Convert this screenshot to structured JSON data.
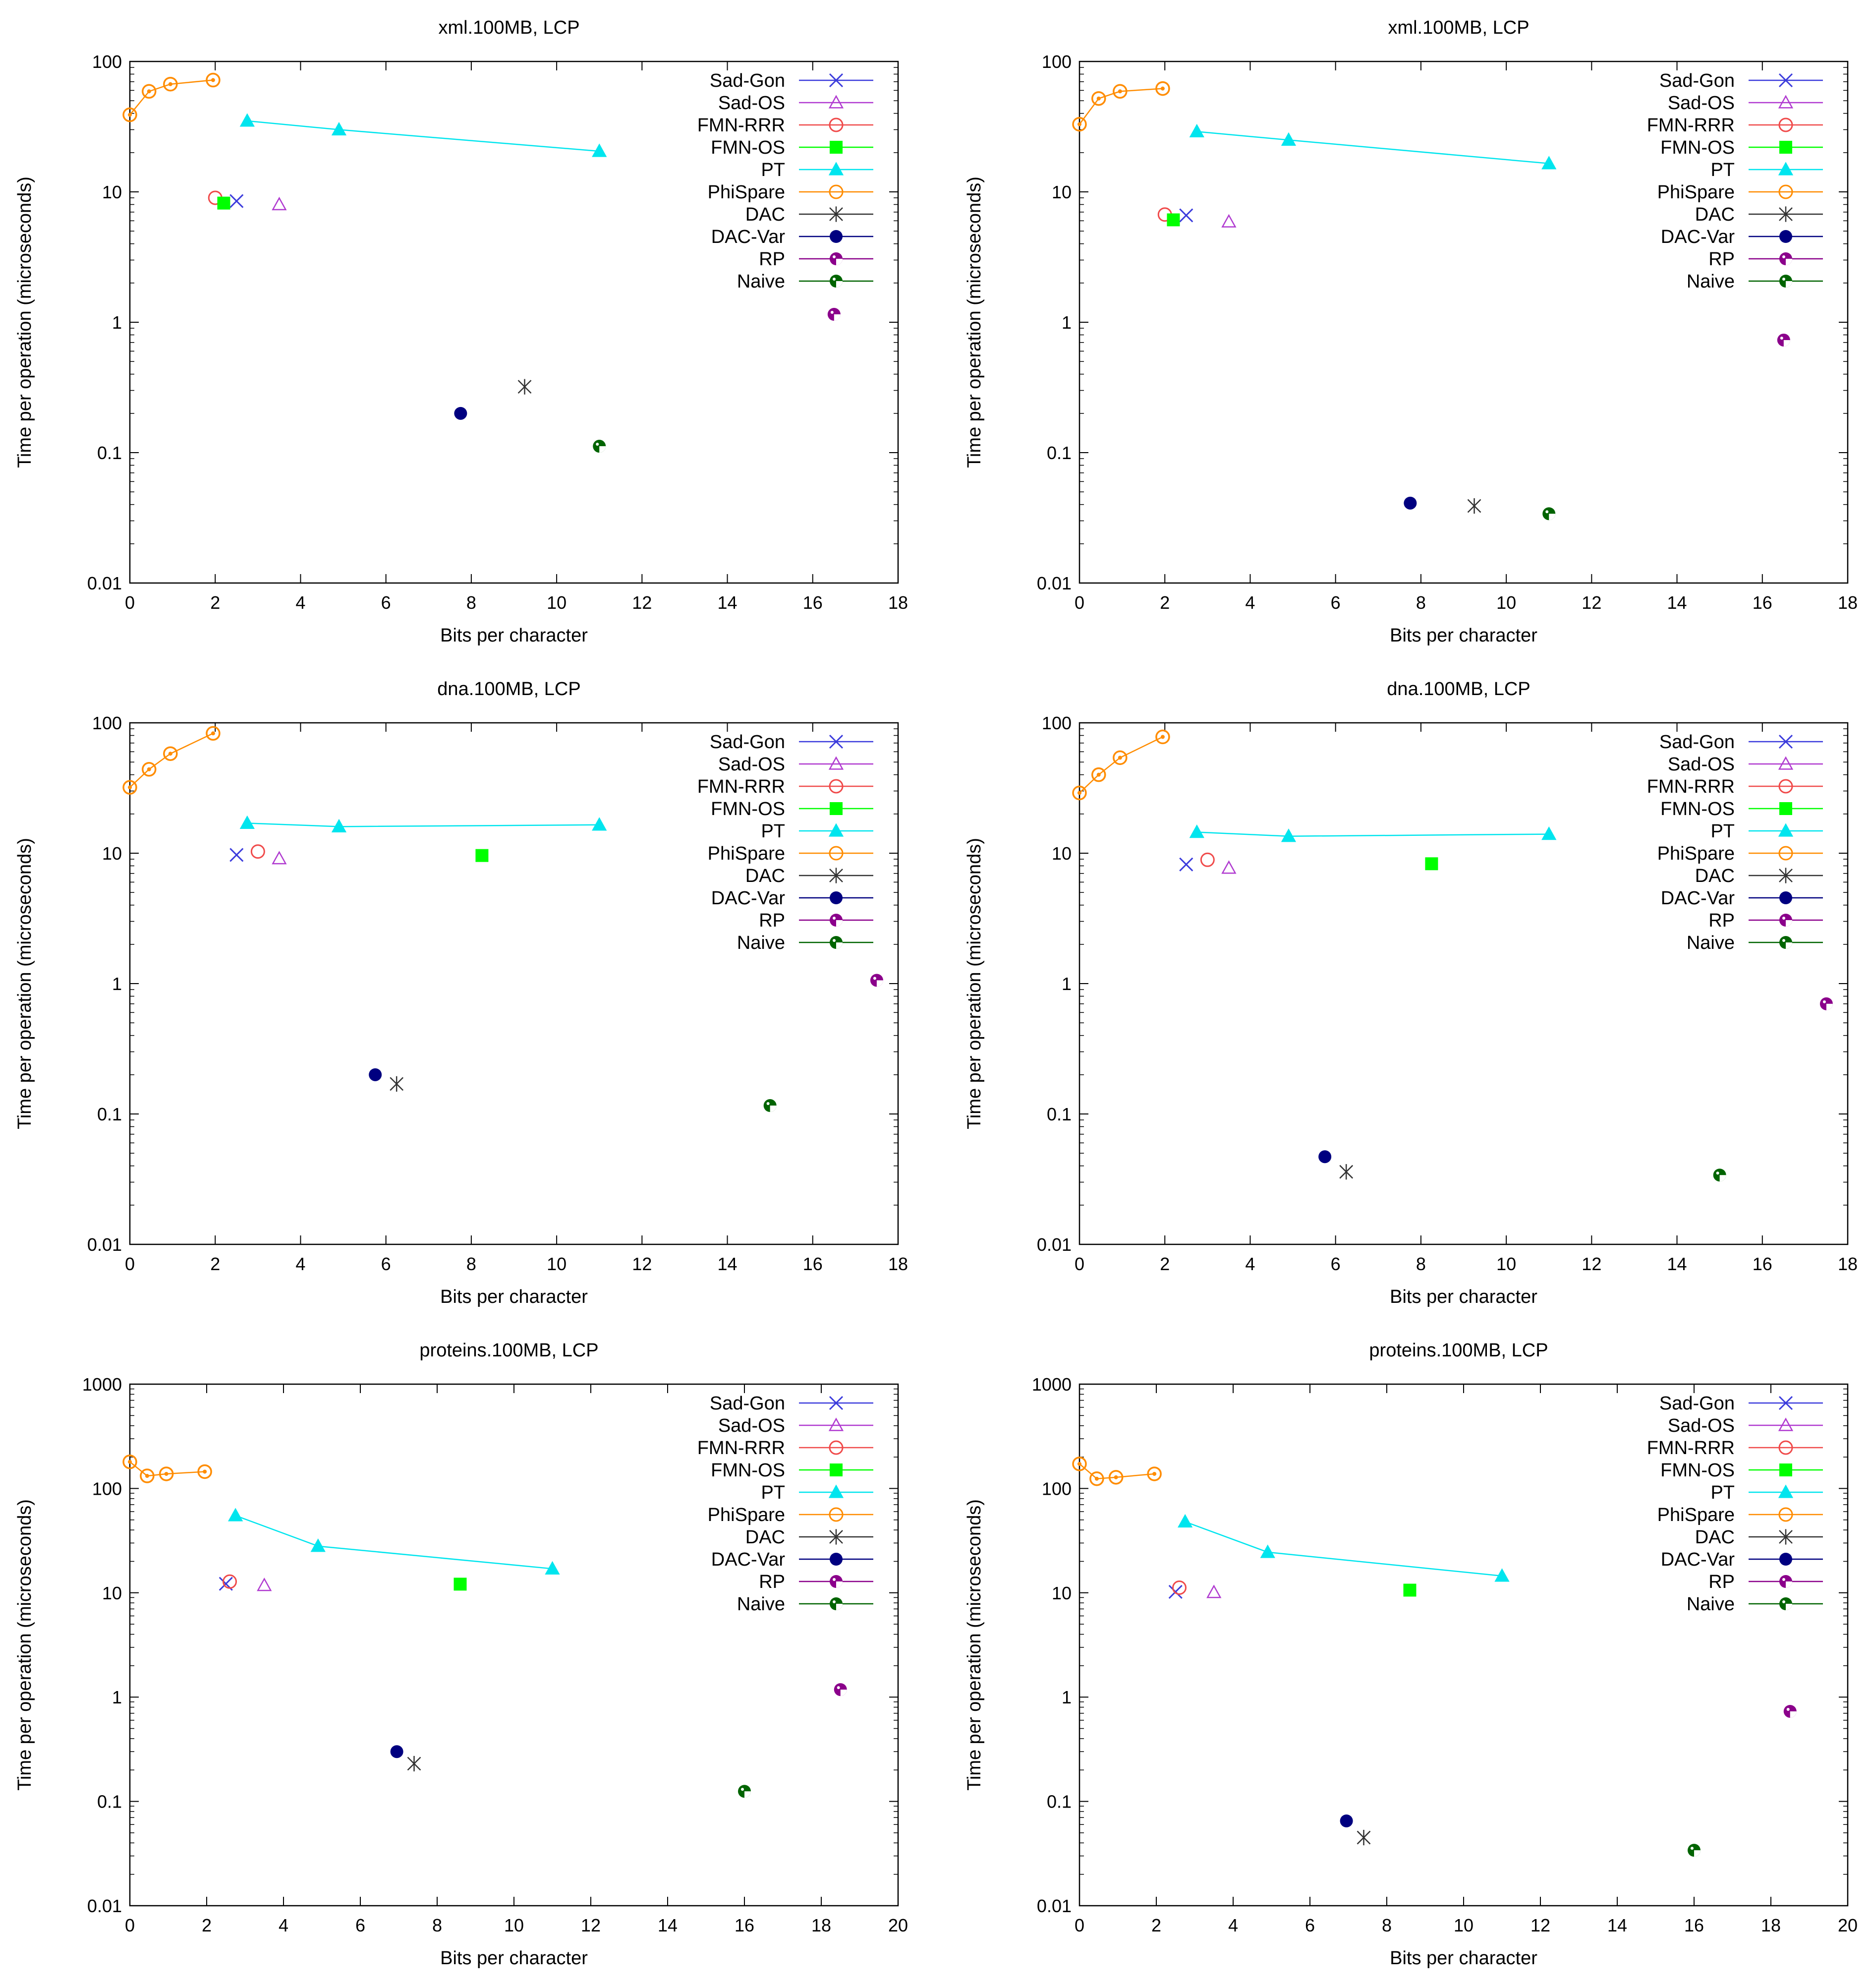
{
  "series_styles": [
    {
      "name": "Sad-Gon",
      "color": "#3b3bdc",
      "marker": "x",
      "legend_marker": "x"
    },
    {
      "name": "Sad-OS",
      "color": "#b03ad0",
      "marker": "triangle-open",
      "legend_marker": "triangle-open"
    },
    {
      "name": "FMN-RRR",
      "color": "#f04a4a",
      "marker": "circle-open",
      "legend_marker": "circle-open"
    },
    {
      "name": "FMN-OS",
      "color": "#00ff00",
      "marker": "square",
      "legend_marker": "square"
    },
    {
      "name": "PT",
      "color": "#00e5ee",
      "marker": "triangle",
      "legend_marker": "triangle"
    },
    {
      "name": "PhiSpare",
      "color": "#ff8c00",
      "marker": "circle-dot",
      "legend_marker": "circle-open"
    },
    {
      "name": "DAC",
      "color": "#333333",
      "marker": "star",
      "legend_marker": "star"
    },
    {
      "name": "DAC-Var",
      "color": "#000080",
      "marker": "circle",
      "legend_marker": "circle"
    },
    {
      "name": "RP",
      "color": "#8b008b",
      "marker": "circle-pattern",
      "legend_marker": "circle-pattern"
    },
    {
      "name": "Naive",
      "color": "#006400",
      "marker": "circle-pattern",
      "legend_marker": "circle-pattern"
    }
  ],
  "chart_data": [
    {
      "type": "scatter",
      "title": "xml.100MB, LCP",
      "xlabel": "Bits per character",
      "ylabel": "Time per operation (microseconds)",
      "xlim": [
        0,
        18
      ],
      "ylim": [
        0.01,
        100
      ],
      "yscale": "log",
      "xticks": [
        0,
        2,
        4,
        6,
        8,
        10,
        12,
        14,
        16,
        18
      ],
      "yticks": [
        0.01,
        0.1,
        1,
        10,
        100
      ],
      "ytick_labels": [
        "0.01",
        "0.1",
        "1",
        "10",
        "100"
      ],
      "legend": "top-right",
      "series": [
        {
          "name": "Sad-Gon",
          "points": [
            [
              2.5,
              8.5
            ]
          ]
        },
        {
          "name": "Sad-OS",
          "points": [
            [
              3.5,
              8.0
            ]
          ]
        },
        {
          "name": "FMN-RRR",
          "points": [
            [
              2.0,
              9.0
            ]
          ]
        },
        {
          "name": "FMN-OS",
          "points": [
            [
              2.2,
              8.2
            ]
          ]
        },
        {
          "name": "PT",
          "points": [
            [
              2.75,
              35
            ],
            [
              4.9,
              30
            ],
            [
              11.0,
              20.5
            ]
          ]
        },
        {
          "name": "PhiSpare",
          "points": [
            [
              0,
              39
            ],
            [
              0.45,
              59
            ],
            [
              0.95,
              67
            ],
            [
              1.95,
              72
            ]
          ]
        },
        {
          "name": "DAC",
          "points": [
            [
              9.25,
              0.32
            ]
          ]
        },
        {
          "name": "DAC-Var",
          "points": [
            [
              7.75,
              0.2
            ]
          ]
        },
        {
          "name": "RP",
          "points": [
            [
              16.5,
              1.15
            ]
          ]
        },
        {
          "name": "Naive",
          "points": [
            [
              11.0,
              0.112
            ]
          ]
        }
      ]
    },
    {
      "type": "scatter",
      "title": "xml.100MB, LCP",
      "xlabel": "Bits per character",
      "ylabel": "Time per operation (microseconds)",
      "xlim": [
        0,
        18
      ],
      "ylim": [
        0.01,
        100
      ],
      "yscale": "log",
      "xticks": [
        0,
        2,
        4,
        6,
        8,
        10,
        12,
        14,
        16,
        18
      ],
      "yticks": [
        0.01,
        0.1,
        1,
        10,
        100
      ],
      "ytick_labels": [
        "0.01",
        "0.1",
        "1",
        "10",
        "100"
      ],
      "legend": "top-right",
      "series": [
        {
          "name": "Sad-Gon",
          "points": [
            [
              2.5,
              6.6
            ]
          ]
        },
        {
          "name": "Sad-OS",
          "points": [
            [
              3.5,
              5.9
            ]
          ]
        },
        {
          "name": "FMN-RRR",
          "points": [
            [
              2.0,
              6.7
            ]
          ]
        },
        {
          "name": "FMN-OS",
          "points": [
            [
              2.2,
              6.1
            ]
          ]
        },
        {
          "name": "PT",
          "points": [
            [
              2.75,
              29
            ],
            [
              4.9,
              25
            ],
            [
              11.0,
              16.5
            ]
          ]
        },
        {
          "name": "PhiSpare",
          "points": [
            [
              0,
              33
            ],
            [
              0.45,
              52
            ],
            [
              0.95,
              59
            ],
            [
              1.95,
              62
            ]
          ]
        },
        {
          "name": "DAC",
          "points": [
            [
              9.25,
              0.039
            ]
          ]
        },
        {
          "name": "DAC-Var",
          "points": [
            [
              7.75,
              0.041
            ]
          ]
        },
        {
          "name": "RP",
          "points": [
            [
              16.5,
              0.73
            ]
          ]
        },
        {
          "name": "Naive",
          "points": [
            [
              11.0,
              0.034
            ]
          ]
        }
      ]
    },
    {
      "type": "scatter",
      "title": "dna.100MB, LCP",
      "xlabel": "Bits per character",
      "ylabel": "Time per operation (microseconds)",
      "xlim": [
        0,
        18
      ],
      "ylim": [
        0.01,
        100
      ],
      "yscale": "log",
      "xticks": [
        0,
        2,
        4,
        6,
        8,
        10,
        12,
        14,
        16,
        18
      ],
      "yticks": [
        0.01,
        0.1,
        1,
        10,
        100
      ],
      "ytick_labels": [
        "0.01",
        "0.1",
        "1",
        "10",
        "100"
      ],
      "legend": "top-right",
      "series": [
        {
          "name": "Sad-Gon",
          "points": [
            [
              2.5,
              9.7
            ]
          ]
        },
        {
          "name": "Sad-OS",
          "points": [
            [
              3.5,
              9.1
            ]
          ]
        },
        {
          "name": "FMN-RRR",
          "points": [
            [
              3.0,
              10.3
            ]
          ]
        },
        {
          "name": "FMN-OS",
          "points": [
            [
              8.25,
              9.6
            ]
          ]
        },
        {
          "name": "PT",
          "points": [
            [
              2.75,
              17
            ],
            [
              4.9,
              16
            ],
            [
              11.0,
              16.5
            ]
          ]
        },
        {
          "name": "PhiSpare",
          "points": [
            [
              0,
              32
            ],
            [
              0.45,
              44
            ],
            [
              0.95,
              58
            ],
            [
              1.95,
              83
            ]
          ]
        },
        {
          "name": "DAC",
          "points": [
            [
              6.25,
              0.17
            ]
          ]
        },
        {
          "name": "DAC-Var",
          "points": [
            [
              5.75,
              0.2
            ]
          ]
        },
        {
          "name": "RP",
          "points": [
            [
              17.5,
              1.06
            ]
          ]
        },
        {
          "name": "Naive",
          "points": [
            [
              15.0,
              0.116
            ]
          ]
        }
      ]
    },
    {
      "type": "scatter",
      "title": "dna.100MB, LCP",
      "xlabel": "Bits per character",
      "ylabel": "Time per operation (microseconds)",
      "xlim": [
        0,
        18
      ],
      "ylim": [
        0.01,
        100
      ],
      "yscale": "log",
      "xticks": [
        0,
        2,
        4,
        6,
        8,
        10,
        12,
        14,
        16,
        18
      ],
      "yticks": [
        0.01,
        0.1,
        1,
        10,
        100
      ],
      "ytick_labels": [
        "0.01",
        "0.1",
        "1",
        "10",
        "100"
      ],
      "legend": "top-right",
      "series": [
        {
          "name": "Sad-Gon",
          "points": [
            [
              2.5,
              8.2
            ]
          ]
        },
        {
          "name": "Sad-OS",
          "points": [
            [
              3.5,
              7.7
            ]
          ]
        },
        {
          "name": "FMN-RRR",
          "points": [
            [
              3.0,
              8.9
            ]
          ]
        },
        {
          "name": "FMN-OS",
          "points": [
            [
              8.25,
              8.3
            ]
          ]
        },
        {
          "name": "PT",
          "points": [
            [
              2.75,
              14.5
            ],
            [
              4.9,
              13.5
            ],
            [
              11.0,
              14
            ]
          ]
        },
        {
          "name": "PhiSpare",
          "points": [
            [
              0,
              29
            ],
            [
              0.45,
              40
            ],
            [
              0.95,
              54
            ],
            [
              1.95,
              78
            ]
          ]
        },
        {
          "name": "DAC",
          "points": [
            [
              6.25,
              0.036
            ]
          ]
        },
        {
          "name": "DAC-Var",
          "points": [
            [
              5.75,
              0.047
            ]
          ]
        },
        {
          "name": "RP",
          "points": [
            [
              17.5,
              0.7
            ]
          ]
        },
        {
          "name": "Naive",
          "points": [
            [
              15.0,
              0.034
            ]
          ]
        }
      ]
    },
    {
      "type": "scatter",
      "title": "proteins.100MB, LCP",
      "xlabel": "Bits per character",
      "ylabel": "Time per operation (microseconds)",
      "xlim": [
        0,
        20
      ],
      "ylim": [
        0.01,
        1000
      ],
      "yscale": "log",
      "xticks": [
        0,
        2,
        4,
        6,
        8,
        10,
        12,
        14,
        16,
        18,
        20
      ],
      "yticks": [
        0.01,
        0.1,
        1,
        10,
        100,
        1000
      ],
      "ytick_labels": [
        "0.01",
        "0.1",
        "1",
        "10",
        "100",
        "1000"
      ],
      "legend": "top-right",
      "series": [
        {
          "name": "Sad-Gon",
          "points": [
            [
              2.5,
              12.2
            ]
          ]
        },
        {
          "name": "Sad-OS",
          "points": [
            [
              3.5,
              11.8
            ]
          ]
        },
        {
          "name": "FMN-RRR",
          "points": [
            [
              2.6,
              12.8
            ]
          ]
        },
        {
          "name": "FMN-OS",
          "points": [
            [
              8.6,
              12.1
            ]
          ]
        },
        {
          "name": "PT",
          "points": [
            [
              2.75,
              55
            ],
            [
              4.9,
              28
            ],
            [
              11.0,
              17
            ]
          ]
        },
        {
          "name": "PhiSpare",
          "points": [
            [
              0,
              180
            ],
            [
              0.45,
              132
            ],
            [
              0.95,
              138
            ],
            [
              1.95,
              145
            ]
          ]
        },
        {
          "name": "DAC",
          "points": [
            [
              7.4,
              0.23
            ]
          ]
        },
        {
          "name": "DAC-Var",
          "points": [
            [
              6.95,
              0.3
            ]
          ]
        },
        {
          "name": "RP",
          "points": [
            [
              18.5,
              1.18
            ]
          ]
        },
        {
          "name": "Naive",
          "points": [
            [
              16.0,
              0.125
            ]
          ]
        }
      ]
    },
    {
      "type": "scatter",
      "title": "proteins.100MB, LCP",
      "xlabel": "Bits per character",
      "ylabel": "Time per operation (microseconds)",
      "xlim": [
        0,
        20
      ],
      "ylim": [
        0.01,
        1000
      ],
      "yscale": "log",
      "xticks": [
        0,
        2,
        4,
        6,
        8,
        10,
        12,
        14,
        16,
        18,
        20
      ],
      "yticks": [
        0.01,
        0.1,
        1,
        10,
        100,
        1000
      ],
      "ytick_labels": [
        "0.01",
        "0.1",
        "1",
        "10",
        "100",
        "1000"
      ],
      "legend": "top-right",
      "series": [
        {
          "name": "Sad-Gon",
          "points": [
            [
              2.5,
              10.2
            ]
          ]
        },
        {
          "name": "Sad-OS",
          "points": [
            [
              3.5,
              10.1
            ]
          ]
        },
        {
          "name": "FMN-RRR",
          "points": [
            [
              2.6,
              11.2
            ]
          ]
        },
        {
          "name": "FMN-OS",
          "points": [
            [
              8.6,
              10.6
            ]
          ]
        },
        {
          "name": "PT",
          "points": [
            [
              2.75,
              48
            ],
            [
              4.9,
              24.5
            ],
            [
              11.0,
              14.5
            ]
          ]
        },
        {
          "name": "PhiSpare",
          "points": [
            [
              0,
              172
            ],
            [
              0.45,
              124
            ],
            [
              0.95,
              128
            ],
            [
              1.95,
              138
            ]
          ]
        },
        {
          "name": "DAC",
          "points": [
            [
              7.4,
              0.045
            ]
          ]
        },
        {
          "name": "DAC-Var",
          "points": [
            [
              6.95,
              0.065
            ]
          ]
        },
        {
          "name": "RP",
          "points": [
            [
              18.5,
              0.73
            ]
          ]
        },
        {
          "name": "Naive",
          "points": [
            [
              16.0,
              0.034
            ]
          ]
        }
      ]
    }
  ]
}
